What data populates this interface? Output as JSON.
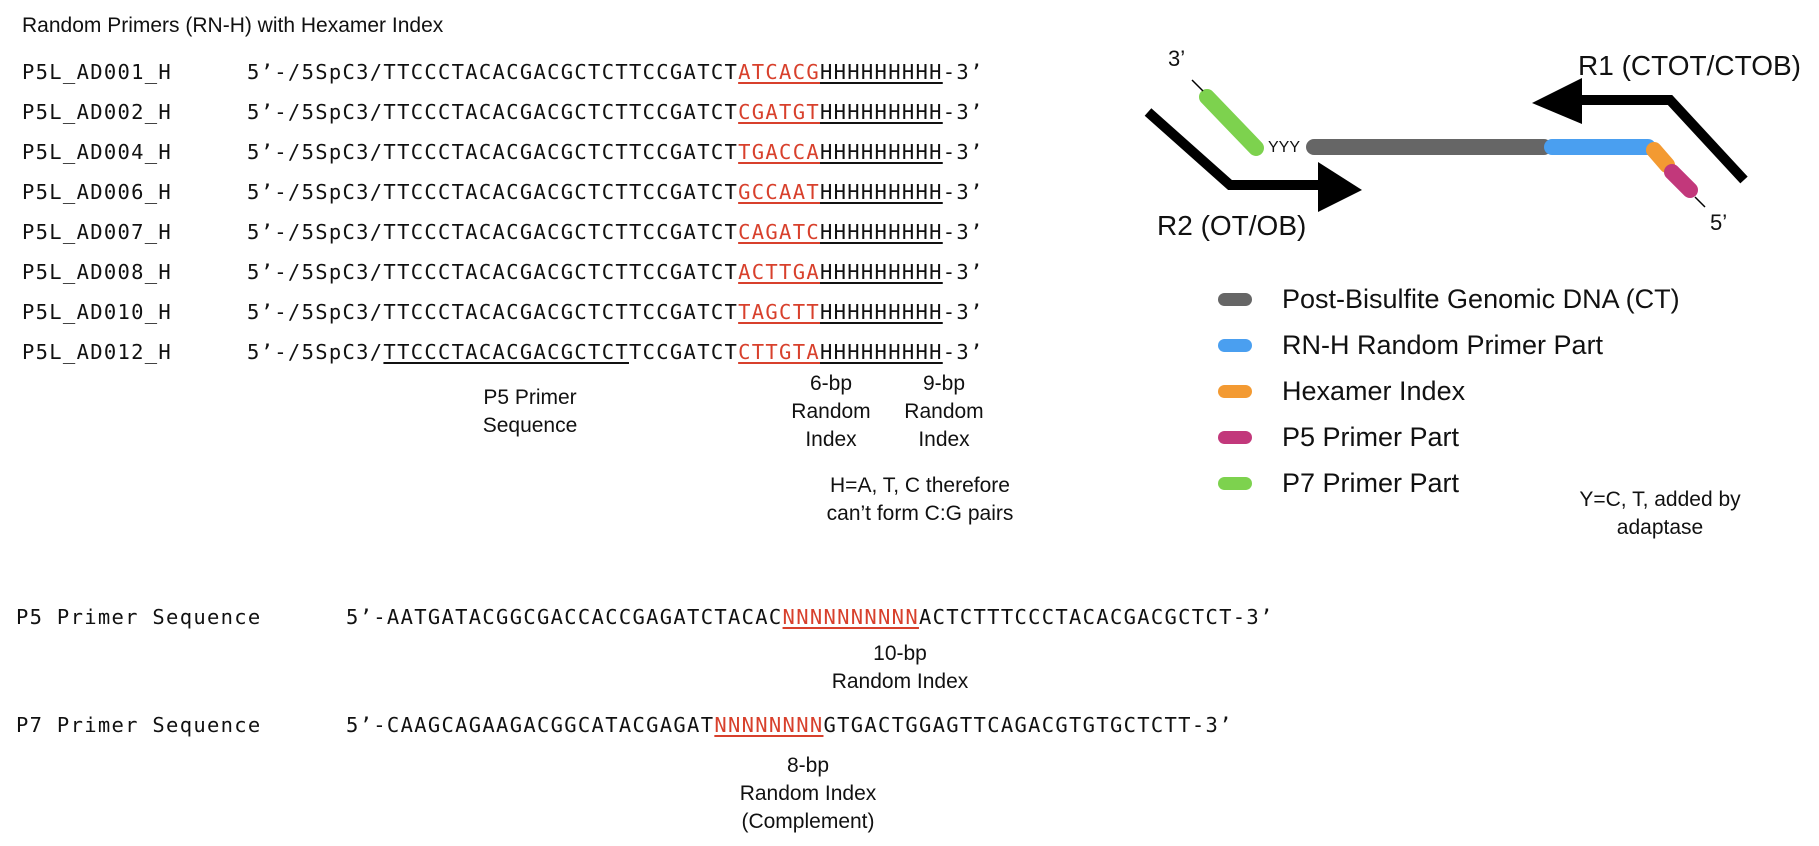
{
  "title": "Random Primers (RN-H) with Hexamer Index",
  "primers": [
    {
      "name": "P5L_AD001_H",
      "prefix": "5’-/5SpC3/",
      "p5": "TTCCCTACACGACGCTCT",
      "mid": "TCCGATCT",
      "index": "ATCACG",
      "random": "HHHHHHHHH",
      "suffix": "-3’"
    },
    {
      "name": "P5L_AD002_H",
      "prefix": "5’-/5SpC3/",
      "p5": "TTCCCTACACGACGCTCT",
      "mid": "TCCGATCT",
      "index": "CGATGT",
      "random": "HHHHHHHHH",
      "suffix": "-3’"
    },
    {
      "name": "P5L_AD004_H",
      "prefix": "5’-/5SpC3/",
      "p5": "TTCCCTACACGACGCTCT",
      "mid": "TCCGATCT",
      "index": "TGACCA",
      "random": "HHHHHHHHH",
      "suffix": "-3’"
    },
    {
      "name": "P5L_AD006_H",
      "prefix": "5’-/5SpC3/",
      "p5": "TTCCCTACACGACGCTCT",
      "mid": "TCCGATCT",
      "index": "GCCAAT",
      "random": "HHHHHHHHH",
      "suffix": "-3’"
    },
    {
      "name": "P5L_AD007_H",
      "prefix": "5’-/5SpC3/",
      "p5": "TTCCCTACACGACGCTCT",
      "mid": "TCCGATCT",
      "index": "CAGATC",
      "random": "HHHHHHHHH",
      "suffix": "-3’"
    },
    {
      "name": "P5L_AD008_H",
      "prefix": "5’-/5SpC3/",
      "p5": "TTCCCTACACGACGCTCT",
      "mid": "TCCGATCT",
      "index": "ACTTGA",
      "random": "HHHHHHHHH",
      "suffix": "-3’"
    },
    {
      "name": "P5L_AD010_H",
      "prefix": "5’-/5SpC3/",
      "p5": "TTCCCTACACGACGCTCT",
      "mid": "TCCGATCT",
      "index": "TAGCTT",
      "random": "HHHHHHHHH",
      "suffix": "-3’"
    },
    {
      "name": "P5L_AD012_H",
      "prefix": "5’-/5SpC3/",
      "p5": "TTCCCTACACGACGCTCT",
      "mid": "TCCGATCT",
      "index": "CTTGTA",
      "random": "HHHHHHHHH",
      "suffix": "-3’"
    }
  ],
  "labels": {
    "p5_primer": [
      "P5 Primer",
      "Sequence"
    ],
    "random_6bp": [
      "6-bp",
      "Random",
      "Index"
    ],
    "random_9bp": [
      "9-bp",
      "Random",
      "Index"
    ],
    "h_note": [
      "H=A, T, C therefore",
      "can’t form C:G pairs"
    ]
  },
  "diagram": {
    "three_prime": "3’",
    "five_prime": "5’",
    "yyy": "YYY",
    "r1": "R1 (CTOT/CTOB)",
    "r2": "R2 (OT/OB)",
    "y_note": [
      "Y=C, T, added by",
      "adaptase"
    ]
  },
  "colors": {
    "genomic": "#666666",
    "rnh": "#4a9ff0",
    "hexamer": "#f39a32",
    "p5": "#c2387b",
    "p7": "#7dd24e",
    "index_red": "#d8402c"
  },
  "legend": [
    {
      "label": "Post-Bisulfite Genomic DNA (CT)",
      "color_key": "genomic"
    },
    {
      "label": "RN-H Random Primer Part",
      "color_key": "rnh"
    },
    {
      "label": "Hexamer Index",
      "color_key": "hexamer"
    },
    {
      "label": "P5 Primer Part",
      "color_key": "p5"
    },
    {
      "label": "P7 Primer Part",
      "color_key": "p7"
    }
  ],
  "sequences": {
    "p5": {
      "name": "P5 Primer Sequence",
      "pre": "5’-AATGATACGGCGACCACCGAGATCTACAC",
      "index": "NNNNNNNNNN",
      "post": "ACTCTTTCCCTACACGACGCTCT-3’",
      "label": [
        "10-bp",
        "Random Index"
      ]
    },
    "p7": {
      "name": "P7 Primer Sequence",
      "pre": "5’-CAAGCAGAAGACGGCATACGAGAT",
      "index": "NNNNNNNN",
      "post": "GTGACTGGAGTTCAGACGTGTGCTCTT-3’",
      "label": [
        "8-bp",
        "Random Index",
        "(Complement)"
      ]
    }
  }
}
